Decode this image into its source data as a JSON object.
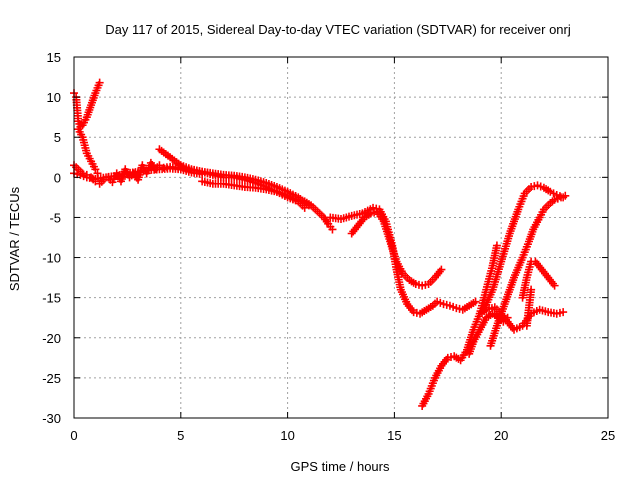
{
  "chart_data": {
    "type": "scatter",
    "title": "Day 117 of 2015, Sidereal Day-to-day VTEC variation (SDTVAR) for receiver onrj",
    "xlabel": "GPS time / hours",
    "ylabel": "SDTVAR / TECUs",
    "xlim": [
      0,
      25
    ],
    "ylim": [
      -30,
      15
    ],
    "xticks": [
      0,
      5,
      10,
      15,
      20,
      25
    ],
    "yticks": [
      -30,
      -25,
      -20,
      -15,
      -10,
      -5,
      0,
      5,
      10,
      15
    ],
    "grid": true,
    "legend": "none",
    "marker": "+",
    "color": "#ff0000",
    "series": [
      {
        "x": [
          0.0,
          0.1,
          0.2,
          0.3,
          0.4,
          0.6,
          0.8,
          1.0,
          1.2
        ],
        "y": [
          10.5,
          10.0,
          7.0,
          6.3,
          6.5,
          7.5,
          9.0,
          10.5,
          11.8
        ]
      },
      {
        "x": [
          0.0,
          0.2,
          0.4,
          0.6,
          0.8,
          1.0,
          1.2,
          1.4,
          1.6,
          1.8,
          2.0,
          2.2,
          2.4,
          2.6,
          2.8,
          3.0,
          3.2,
          3.4,
          3.6,
          3.8,
          4.0,
          4.2,
          4.5,
          5.0,
          5.5,
          6.0,
          6.5,
          7.0,
          7.5,
          8.0,
          8.5,
          9.0,
          9.5,
          10.0,
          10.5,
          11.0
        ],
        "y": [
          1.5,
          1.0,
          0.5,
          0.3,
          0.0,
          -0.5,
          -0.8,
          -0.3,
          0.0,
          -0.6,
          0.5,
          -0.5,
          1.0,
          0.0,
          0.5,
          -0.3,
          1.5,
          0.5,
          1.8,
          1.0,
          1.5,
          1.2,
          1.3,
          1.2,
          0.9,
          0.7,
          0.5,
          0.3,
          0.2,
          0.0,
          -0.3,
          -0.7,
          -1.2,
          -1.8,
          -2.5,
          -3.5
        ]
      },
      {
        "x": [
          0.0,
          0.3,
          0.6,
          1.0,
          1.5,
          2.0,
          2.5,
          3.0,
          3.5,
          4.0,
          4.5,
          5.0,
          5.5,
          6.0
        ],
        "y": [
          0.5,
          0.3,
          0.0,
          -0.2,
          0.0,
          0.2,
          0.5,
          0.7,
          0.9,
          1.0,
          1.1,
          1.0,
          0.6,
          0.4
        ]
      },
      {
        "x": [
          0.2,
          0.4,
          0.6,
          0.8,
          1.0,
          1.1
        ],
        "y": [
          6.0,
          5.0,
          3.0,
          2.0,
          1.0,
          0.5
        ]
      },
      {
        "x": [
          4.0,
          4.5,
          5.0,
          5.5,
          6.0,
          6.5,
          7.0,
          7.5,
          8.0,
          8.5,
          9.0,
          9.5,
          10.0,
          10.5
        ],
        "y": [
          3.5,
          2.5,
          1.5,
          1.0,
          0.7,
          0.3,
          0.0,
          0.0,
          -0.3,
          -0.7,
          -1.2,
          -1.8,
          -2.5,
          -3.0
        ]
      },
      {
        "x": [
          6.0,
          6.5,
          7.0,
          7.5,
          8.0,
          8.5,
          9.0,
          9.5,
          10.0,
          10.5,
          10.8
        ],
        "y": [
          -0.5,
          -0.8,
          -0.8,
          -1.0,
          -1.2,
          -1.3,
          -1.5,
          -1.8,
          -2.3,
          -3.0,
          -3.8
        ]
      },
      {
        "x": [
          10.8,
          11.1,
          11.3,
          11.5,
          11.7,
          11.9,
          12.1
        ],
        "y": [
          -3.0,
          -3.5,
          -4.0,
          -4.5,
          -5.0,
          -5.8,
          -6.5
        ]
      },
      {
        "x": [
          12.0,
          12.5,
          13.0,
          13.5,
          14.0,
          14.3,
          14.6,
          14.9,
          15.1,
          15.3,
          15.6,
          15.9,
          16.2,
          16.5,
          16.8,
          17.0,
          17.3,
          17.6,
          17.9,
          18.2,
          18.5,
          18.8
        ],
        "y": [
          -5.0,
          -5.2,
          -4.8,
          -4.5,
          -3.8,
          -4.0,
          -5.5,
          -8.5,
          -11.5,
          -14.0,
          -15.8,
          -16.8,
          -17.0,
          -16.5,
          -16.0,
          -15.5,
          -15.8,
          -16.0,
          -16.3,
          -16.5,
          -16.0,
          -15.5
        ]
      },
      {
        "x": [
          13.0,
          13.3,
          13.6,
          13.9,
          14.2,
          14.5,
          14.8,
          15.1,
          15.4,
          15.7,
          16.0,
          16.3,
          16.6,
          16.9,
          17.2
        ],
        "y": [
          -7.0,
          -6.0,
          -5.0,
          -4.5,
          -4.3,
          -5.5,
          -8.0,
          -10.5,
          -12.0,
          -12.8,
          -13.3,
          -13.5,
          -13.3,
          -12.5,
          -11.5
        ]
      },
      {
        "x": [
          16.3,
          16.6,
          16.9,
          17.2,
          17.5,
          17.8,
          18.1,
          18.4,
          18.7,
          19.0,
          19.3,
          19.6,
          19.8
        ],
        "y": [
          -28.5,
          -27.0,
          -25.0,
          -23.5,
          -22.5,
          -22.3,
          -22.8,
          -21.5,
          -19.0,
          -17.0,
          -14.0,
          -11.0,
          -8.5
        ]
      },
      {
        "x": [
          18.5,
          18.7,
          19.0,
          19.3,
          19.6,
          19.9,
          20.1,
          20.3
        ],
        "y": [
          -22.0,
          -20.5,
          -19.0,
          -17.5,
          -17.0,
          -17.5,
          -18.0,
          -17.5
        ]
      },
      {
        "x": [
          19.0,
          19.3,
          19.7,
          20.0,
          20.3,
          20.6,
          21.0,
          21.4,
          21.8,
          22.2,
          22.6,
          22.9
        ],
        "y": [
          -17.0,
          -16.5,
          -16.2,
          -17.0,
          -18.0,
          -19.0,
          -18.5,
          -17.0,
          -16.5,
          -16.8,
          -17.0,
          -16.8
        ]
      },
      {
        "x": [
          19.5,
          19.8,
          20.2,
          20.6,
          21.0,
          21.3,
          21.5,
          21.8,
          22.0,
          22.3,
          22.5,
          22.8,
          23.0
        ],
        "y": [
          -21.0,
          -18.5,
          -15.5,
          -12.5,
          -10.0,
          -8.0,
          -6.5,
          -5.0,
          -4.0,
          -3.2,
          -2.8,
          -2.5,
          -2.3
        ]
      },
      {
        "x": [
          19.2,
          19.6,
          20.0,
          20.4,
          20.8,
          21.1,
          21.4,
          21.7,
          22.0,
          22.3,
          22.6,
          22.9
        ],
        "y": [
          -16.5,
          -14.0,
          -10.5,
          -7.0,
          -4.0,
          -2.0,
          -1.2,
          -1.0,
          -1.3,
          -1.8,
          -2.2,
          -2.5
        ]
      },
      {
        "x": [
          21.0,
          21.2,
          21.4,
          21.6,
          21.9,
          22.2,
          22.5
        ],
        "y": [
          -15.0,
          -12.5,
          -10.5,
          -10.5,
          -11.5,
          -12.5,
          -13.5
        ]
      },
      {
        "x": [
          21.2,
          21.4
        ],
        "y": [
          -18.5,
          -14.0
        ]
      }
    ]
  }
}
